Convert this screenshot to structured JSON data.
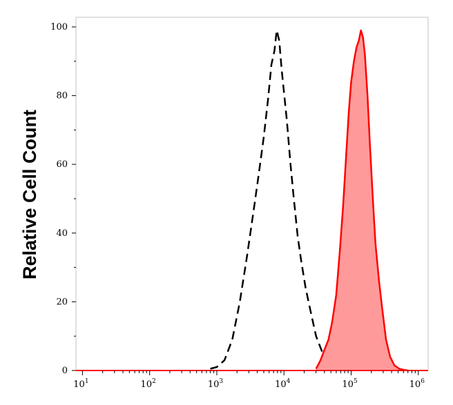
{
  "chart_data": {
    "type": "area",
    "title": "",
    "xlabel": "",
    "ylabel": "Relative Cell Count",
    "xscale": "log",
    "xlim": [
      8,
      1400000
    ],
    "ylim": [
      0,
      100
    ],
    "ytick_labels": [
      "0",
      "20",
      "40",
      "60",
      "80",
      "100"
    ],
    "xtick_labels": [
      {
        "base": "10",
        "exp": "1"
      },
      {
        "base": "10",
        "exp": "2"
      },
      {
        "base": "10",
        "exp": "3"
      },
      {
        "base": "10",
        "exp": "4"
      },
      {
        "base": "10",
        "exp": "5"
      },
      {
        "base": "10",
        "exp": "6"
      }
    ],
    "grid": false,
    "legend": "none",
    "series": [
      {
        "style": "dashed-line",
        "color": "#000000",
        "x": [
          800,
          1000,
          1300,
          1700,
          2200,
          2800,
          3500,
          4200,
          5000,
          5800,
          6500,
          7200,
          7800,
          8500,
          9200,
          10000,
          11000,
          12500,
          14000,
          16000,
          18000,
          21000,
          25000,
          30000,
          36000,
          42000,
          50000,
          60000
        ],
        "y": [
          0.5,
          1,
          3,
          9,
          20,
          33,
          46,
          57,
          68,
          79,
          89,
          93,
          99,
          96,
          88,
          81,
          73,
          60,
          50,
          39,
          32,
          24,
          17,
          10,
          6,
          3,
          1,
          0.3
        ]
      },
      {
        "style": "filled-area",
        "color": "#ff0000",
        "fill": "#ff9a9a",
        "x": [
          30000,
          35000,
          40000,
          46000,
          52000,
          60000,
          68000,
          76000,
          84000,
          92000,
          100000,
          110000,
          120000,
          130000,
          140000,
          150000,
          160000,
          175000,
          190000,
          210000,
          230000,
          260000,
          290000,
          330000,
          380000,
          440000,
          520000,
          600000,
          700000
        ],
        "y": [
          0.5,
          3,
          6,
          9,
          14,
          22,
          35,
          48,
          62,
          75,
          84,
          90,
          94,
          96,
          99,
          97,
          92,
          80,
          66,
          50,
          37,
          26,
          18,
          9,
          4,
          1.5,
          0.5,
          0.2,
          0
        ]
      }
    ]
  }
}
